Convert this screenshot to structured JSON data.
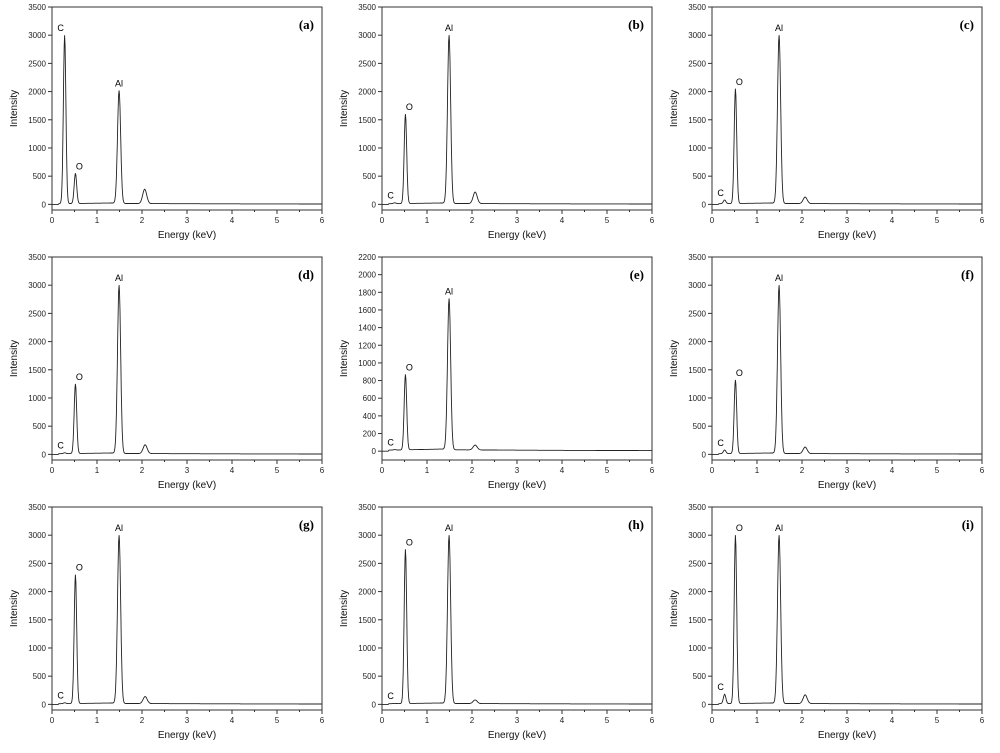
{
  "chart_data": [
    {
      "type": "line",
      "panel_label": "(a)",
      "xlabel": "Energy (keV)",
      "ylabel": "Intensity",
      "xlim": [
        0,
        6
      ],
      "ylim": [
        -100,
        3500
      ],
      "ytick_step": 500,
      "xticks": [
        0,
        1,
        2,
        3,
        4,
        5,
        6
      ],
      "peaks": [
        {
          "element": "C",
          "energy": 0.28,
          "intensity": 3000
        },
        {
          "element": "O",
          "energy": 0.52,
          "intensity": 550
        },
        {
          "element": "Al",
          "energy": 1.49,
          "intensity": 2020
        },
        {
          "element": "",
          "energy": 2.06,
          "intensity": 270
        }
      ]
    },
    {
      "type": "line",
      "panel_label": "(b)",
      "xlabel": "Energy (keV)",
      "ylabel": "Intensity",
      "xlim": [
        0,
        6
      ],
      "ylim": [
        -100,
        3500
      ],
      "ytick_step": 500,
      "xticks": [
        0,
        1,
        2,
        3,
        4,
        5,
        6
      ],
      "peaks": [
        {
          "element": "C",
          "energy": 0.28,
          "intensity": 30
        },
        {
          "element": "O",
          "energy": 0.52,
          "intensity": 1600
        },
        {
          "element": "Al",
          "energy": 1.49,
          "intensity": 3000
        },
        {
          "element": "",
          "energy": 2.07,
          "intensity": 220
        }
      ]
    },
    {
      "type": "line",
      "panel_label": "(c)",
      "xlabel": "Energy (keV)",
      "ylabel": "Intensity",
      "xlim": [
        0,
        6
      ],
      "ylim": [
        -100,
        3500
      ],
      "ytick_step": 500,
      "xticks": [
        0,
        1,
        2,
        3,
        4,
        5,
        6
      ],
      "peaks": [
        {
          "element": "C",
          "energy": 0.28,
          "intensity": 80
        },
        {
          "element": "O",
          "energy": 0.52,
          "intensity": 2050
        },
        {
          "element": "Al",
          "energy": 1.49,
          "intensity": 3000
        },
        {
          "element": "",
          "energy": 2.07,
          "intensity": 130
        }
      ]
    },
    {
      "type": "line",
      "panel_label": "(d)",
      "xlabel": "Energy (keV)",
      "ylabel": "Intensity",
      "xlim": [
        0,
        6
      ],
      "ylim": [
        -100,
        3500
      ],
      "ytick_step": 500,
      "xticks": [
        0,
        1,
        2,
        3,
        4,
        5,
        6
      ],
      "peaks": [
        {
          "element": "C",
          "energy": 0.28,
          "intensity": 30
        },
        {
          "element": "O",
          "energy": 0.52,
          "intensity": 1250
        },
        {
          "element": "Al",
          "energy": 1.49,
          "intensity": 3000
        },
        {
          "element": "",
          "energy": 2.07,
          "intensity": 170
        }
      ]
    },
    {
      "type": "line",
      "panel_label": "(e)",
      "xlabel": "Energy (keV)",
      "ylabel": "Intensity",
      "xlim": [
        0,
        6
      ],
      "ylim": [
        -100,
        2200
      ],
      "ytick_step": 200,
      "xticks": [
        0,
        1,
        2,
        3,
        4,
        5,
        6
      ],
      "peaks": [
        {
          "element": "C",
          "energy": 0.28,
          "intensity": 20
        },
        {
          "element": "O",
          "energy": 0.52,
          "intensity": 870
        },
        {
          "element": "Al",
          "energy": 1.49,
          "intensity": 1730
        },
        {
          "element": "",
          "energy": 2.07,
          "intensity": 70
        }
      ]
    },
    {
      "type": "line",
      "panel_label": "(f)",
      "xlabel": "Energy (keV)",
      "ylabel": "Intensity",
      "xlim": [
        0,
        6
      ],
      "ylim": [
        -100,
        3500
      ],
      "ytick_step": 500,
      "xticks": [
        0,
        1,
        2,
        3,
        4,
        5,
        6
      ],
      "peaks": [
        {
          "element": "C",
          "energy": 0.28,
          "intensity": 80
        },
        {
          "element": "O",
          "energy": 0.52,
          "intensity": 1320
        },
        {
          "element": "Al",
          "energy": 1.49,
          "intensity": 3000
        },
        {
          "element": "",
          "energy": 2.07,
          "intensity": 130
        }
      ]
    },
    {
      "type": "line",
      "panel_label": "(g)",
      "xlabel": "Energy (keV)",
      "ylabel": "Intensity",
      "xlim": [
        0,
        6
      ],
      "ylim": [
        -100,
        3500
      ],
      "ytick_step": 500,
      "xticks": [
        0,
        1,
        2,
        3,
        4,
        5,
        6
      ],
      "peaks": [
        {
          "element": "C",
          "energy": 0.28,
          "intensity": 30
        },
        {
          "element": "O",
          "energy": 0.52,
          "intensity": 2300
        },
        {
          "element": "Al",
          "energy": 1.49,
          "intensity": 3000
        },
        {
          "element": "",
          "energy": 2.07,
          "intensity": 140
        }
      ]
    },
    {
      "type": "line",
      "panel_label": "(h)",
      "xlabel": "Energy (keV)",
      "ylabel": "Intensity",
      "xlim": [
        0,
        6
      ],
      "ylim": [
        -100,
        3500
      ],
      "ytick_step": 500,
      "xticks": [
        0,
        1,
        2,
        3,
        4,
        5,
        6
      ],
      "peaks": [
        {
          "element": "C",
          "energy": 0.28,
          "intensity": 20
        },
        {
          "element": "O",
          "energy": 0.52,
          "intensity": 2750
        },
        {
          "element": "Al",
          "energy": 1.49,
          "intensity": 3000
        },
        {
          "element": "",
          "energy": 2.07,
          "intensity": 80
        }
      ]
    },
    {
      "type": "line",
      "panel_label": "(i)",
      "xlabel": "Energy (keV)",
      "ylabel": "Intensity",
      "xlim": [
        0,
        6
      ],
      "ylim": [
        -100,
        3500
      ],
      "ytick_step": 500,
      "xticks": [
        0,
        1,
        2,
        3,
        4,
        5,
        6
      ],
      "peaks": [
        {
          "element": "C",
          "energy": 0.28,
          "intensity": 180
        },
        {
          "element": "O",
          "energy": 0.52,
          "intensity": 3000
        },
        {
          "element": "Al",
          "energy": 1.49,
          "intensity": 3000
        },
        {
          "element": "",
          "energy": 2.07,
          "intensity": 170
        }
      ]
    }
  ]
}
